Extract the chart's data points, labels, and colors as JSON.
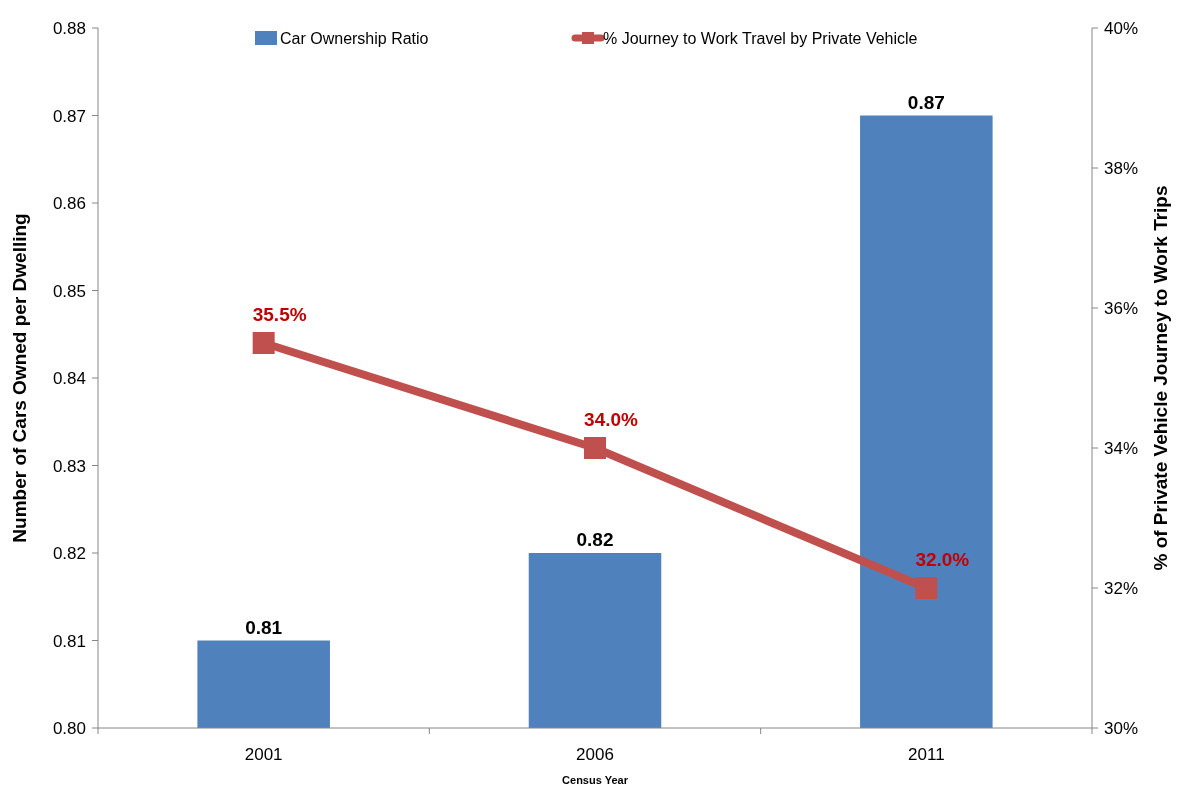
{
  "chart_data": {
    "type": "bar",
    "xlabel": "Census Year",
    "ylabel": "Number of Cars Owned per Dwelling",
    "y2label": "% of Private Vehicle Journey to Work Trips",
    "categories": [
      "2001",
      "2006",
      "2011"
    ],
    "series": [
      {
        "name": "Car Ownership Ratio",
        "color": "#4f81bd",
        "values": [
          0.81,
          0.82,
          0.87
        ],
        "value_labels": [
          "0.81",
          "0.82",
          "0.87"
        ]
      },
      {
        "name": "% Journey to Work Travel by Private Vehicle",
        "type": "line",
        "axis": "y2",
        "color": "#c0504d",
        "marker": "square",
        "values": [
          35.5,
          34.0,
          32.0
        ],
        "value_labels": [
          "35.5%",
          "34.0%",
          "32.0%"
        ]
      }
    ],
    "ylim": [
      0.8,
      0.88
    ],
    "yticks": [
      {
        "value": 0.8,
        "label": "0.80"
      },
      {
        "value": 0.81,
        "label": "0.81"
      },
      {
        "value": 0.82,
        "label": "0.82"
      },
      {
        "value": 0.83,
        "label": "0.83"
      },
      {
        "value": 0.84,
        "label": "0.84"
      },
      {
        "value": 0.85,
        "label": "0.85"
      },
      {
        "value": 0.86,
        "label": "0.86"
      },
      {
        "value": 0.87,
        "label": "0.87"
      },
      {
        "value": 0.88,
        "label": "0.88"
      }
    ],
    "y2lim": [
      30,
      40
    ],
    "y2ticks": [
      {
        "value": 30,
        "label": "30%"
      },
      {
        "value": 32,
        "label": "32%"
      },
      {
        "value": 34,
        "label": "34%"
      },
      {
        "value": 36,
        "label": "36%"
      },
      {
        "value": 38,
        "label": "38%"
      },
      {
        "value": 40,
        "label": "40%"
      }
    ],
    "legend": "top",
    "grid": false
  }
}
